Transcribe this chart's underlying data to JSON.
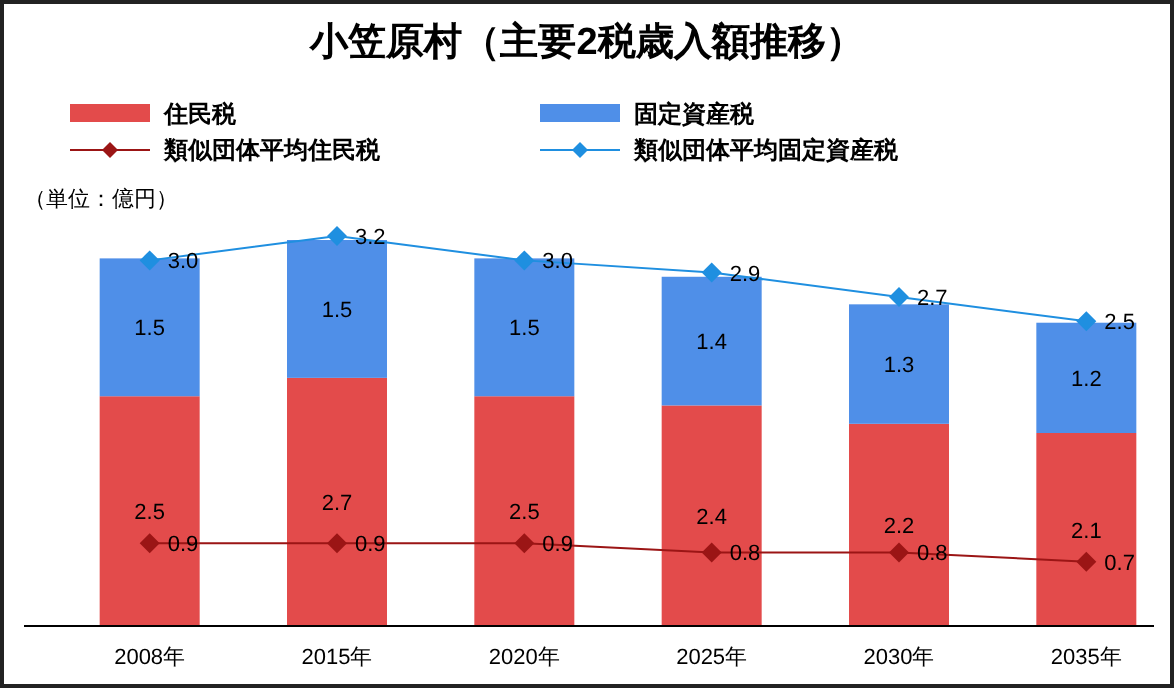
{
  "chart_data": {
    "type": "bar",
    "stacked": true,
    "title": "小笠原村（主要2税歳入額推移）",
    "annotations": [
      "（単位：億円）"
    ],
    "categories": [
      "2008年",
      "2015年",
      "2020年",
      "2025年",
      "2030年",
      "2035年"
    ],
    "series": [
      {
        "name": "住民税",
        "color": "#e34b4b",
        "values": [
          2.5,
          2.7,
          2.5,
          2.4,
          2.2,
          2.1
        ]
      },
      {
        "name": "固定資産税",
        "color": "#4f8fe8",
        "values": [
          1.5,
          1.5,
          1.5,
          1.4,
          1.3,
          1.2
        ]
      },
      {
        "name": "類似団体平均住民税",
        "type": "line",
        "color": "#9b1515",
        "values": [
          0.9,
          0.9,
          0.9,
          0.8,
          0.8,
          0.7
        ]
      },
      {
        "name": "類似団体平均固定資産税",
        "type": "line",
        "axis": "y2",
        "color": "#1f8fe0",
        "values": [
          3.0,
          3.2,
          3.0,
          2.9,
          2.7,
          2.5
        ],
        "value_labels": [
          "3.0",
          "3.2",
          "3.0",
          "2.9",
          "2.7",
          "2.5"
        ]
      }
    ],
    "data_labels": true,
    "legend": "top",
    "marker": "diamond"
  }
}
